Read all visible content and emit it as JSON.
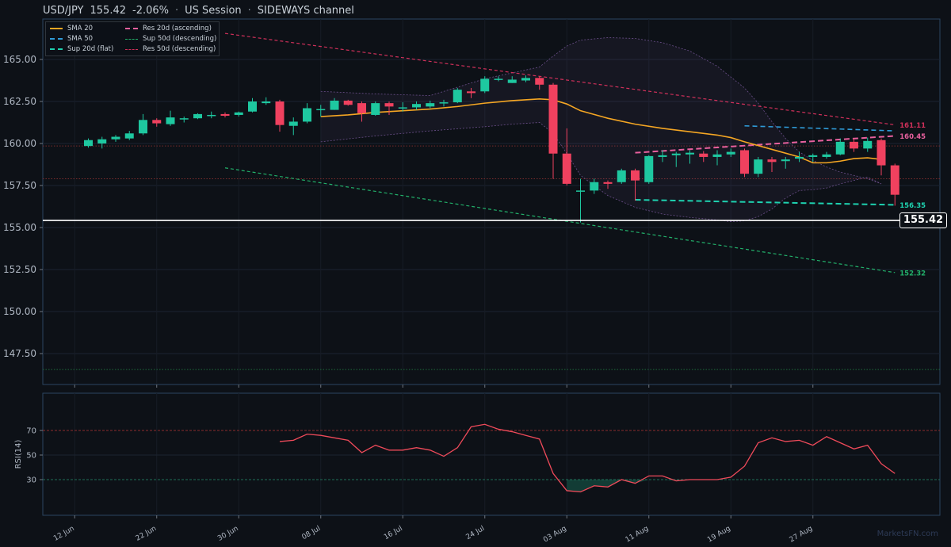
{
  "header": {
    "pair": "USD/JPY",
    "price": "155.42",
    "change": "-2.06%",
    "session": "US Session",
    "channel": "SIDEWAYS channel"
  },
  "colors": {
    "background": "#0d1117",
    "up": "#1ec8a0",
    "down": "#f0415f",
    "sma20": "#f5a623",
    "sma50": "#2f9bd8",
    "sup20": "#1ed2b0",
    "res20": "#e8609e",
    "sup50": "#22b06a",
    "res50": "#d0305a",
    "rsi": "#ef4a5a"
  },
  "legend": {
    "sma20": "SMA 20",
    "sma50": "SMA 50",
    "sup20": "Sup 20d (flat)",
    "res20": "Res 20d (ascending)",
    "sup50": "Sup 50d (descending)",
    "res50": "Res 50d (descending)"
  },
  "watermark": "MarketsFN.com",
  "current_price_label": "155.42",
  "chart_data": {
    "type": "candlestick",
    "ylim": [
      146,
      167
    ],
    "yticks": [
      "165.00",
      "162.50",
      "160.00",
      "157.50",
      "155.00",
      "152.50",
      "150.00",
      "147.50"
    ],
    "xticks": [
      {
        "label": "12 Jun",
        "index": -1
      },
      {
        "label": "22 Jun",
        "index": 5
      },
      {
        "label": "30 Jun",
        "index": 11
      },
      {
        "label": "08 Jul",
        "index": 17
      },
      {
        "label": "16 Jul",
        "index": 23
      },
      {
        "label": "24 Jul",
        "index": 29
      },
      {
        "label": "03 Aug",
        "index": 35
      },
      {
        "label": "11 Aug",
        "index": 41
      },
      {
        "label": "19 Aug",
        "index": 47
      },
      {
        "label": "27 Aug",
        "index": 53
      }
    ],
    "candles": [
      {
        "o": 159.85,
        "h": 160.3,
        "l": 159.75,
        "c": 160.2
      },
      {
        "o": 160.0,
        "h": 160.4,
        "l": 159.7,
        "c": 160.25
      },
      {
        "o": 160.25,
        "h": 160.5,
        "l": 160.1,
        "c": 160.4
      },
      {
        "o": 160.3,
        "h": 160.75,
        "l": 160.2,
        "c": 160.6
      },
      {
        "o": 160.6,
        "h": 161.75,
        "l": 160.5,
        "c": 161.4
      },
      {
        "o": 161.4,
        "h": 161.5,
        "l": 161.0,
        "c": 161.2
      },
      {
        "o": 161.15,
        "h": 161.95,
        "l": 161.05,
        "c": 161.55
      },
      {
        "o": 161.45,
        "h": 161.6,
        "l": 161.25,
        "c": 161.5
      },
      {
        "o": 161.5,
        "h": 161.8,
        "l": 161.45,
        "c": 161.75
      },
      {
        "o": 161.65,
        "h": 161.9,
        "l": 161.5,
        "c": 161.7
      },
      {
        "o": 161.75,
        "h": 161.85,
        "l": 161.55,
        "c": 161.65
      },
      {
        "o": 161.7,
        "h": 161.9,
        "l": 161.6,
        "c": 161.85
      },
      {
        "o": 161.9,
        "h": 162.7,
        "l": 161.85,
        "c": 162.5
      },
      {
        "o": 162.4,
        "h": 162.75,
        "l": 162.3,
        "c": 162.5
      },
      {
        "o": 162.5,
        "h": 162.6,
        "l": 160.7,
        "c": 161.1
      },
      {
        "o": 161.05,
        "h": 161.55,
        "l": 160.5,
        "c": 161.3
      },
      {
        "o": 161.3,
        "h": 162.4,
        "l": 161.2,
        "c": 162.1
      },
      {
        "o": 162.0,
        "h": 162.3,
        "l": 161.6,
        "c": 162.05
      },
      {
        "o": 162.0,
        "h": 162.7,
        "l": 162.0,
        "c": 162.55
      },
      {
        "o": 162.55,
        "h": 162.6,
        "l": 162.25,
        "c": 162.3
      },
      {
        "o": 162.4,
        "h": 162.5,
        "l": 161.3,
        "c": 161.8
      },
      {
        "o": 161.7,
        "h": 162.5,
        "l": 161.65,
        "c": 162.4
      },
      {
        "o": 162.4,
        "h": 162.5,
        "l": 161.7,
        "c": 162.2
      },
      {
        "o": 162.1,
        "h": 162.45,
        "l": 161.9,
        "c": 162.15
      },
      {
        "o": 162.15,
        "h": 162.5,
        "l": 162.0,
        "c": 162.35
      },
      {
        "o": 162.2,
        "h": 162.55,
        "l": 162.1,
        "c": 162.4
      },
      {
        "o": 162.4,
        "h": 162.6,
        "l": 162.2,
        "c": 162.45
      },
      {
        "o": 162.45,
        "h": 163.3,
        "l": 162.4,
        "c": 163.2
      },
      {
        "o": 163.1,
        "h": 163.3,
        "l": 162.7,
        "c": 163.0
      },
      {
        "o": 163.1,
        "h": 164.0,
        "l": 163.0,
        "c": 163.85
      },
      {
        "o": 163.8,
        "h": 164.0,
        "l": 163.7,
        "c": 163.85
      },
      {
        "o": 163.6,
        "h": 164.0,
        "l": 163.6,
        "c": 163.8
      },
      {
        "o": 163.75,
        "h": 164.05,
        "l": 163.65,
        "c": 163.9
      },
      {
        "o": 163.9,
        "h": 164.0,
        "l": 163.2,
        "c": 163.5
      },
      {
        "o": 163.5,
        "h": 163.6,
        "l": 157.9,
        "c": 159.4
      },
      {
        "o": 159.4,
        "h": 160.9,
        "l": 157.5,
        "c": 157.6
      },
      {
        "o": 157.2,
        "h": 157.9,
        "l": 155.3,
        "c": 157.2
      },
      {
        "o": 157.2,
        "h": 157.9,
        "l": 157.0,
        "c": 157.7
      },
      {
        "o": 157.7,
        "h": 157.8,
        "l": 157.3,
        "c": 157.6
      },
      {
        "o": 157.7,
        "h": 158.5,
        "l": 157.6,
        "c": 158.4
      },
      {
        "o": 158.4,
        "h": 158.5,
        "l": 156.6,
        "c": 157.8
      },
      {
        "o": 157.7,
        "h": 159.3,
        "l": 157.6,
        "c": 159.25
      },
      {
        "o": 159.2,
        "h": 159.6,
        "l": 158.9,
        "c": 159.3
      },
      {
        "o": 159.3,
        "h": 159.5,
        "l": 158.6,
        "c": 159.4
      },
      {
        "o": 159.35,
        "h": 159.6,
        "l": 158.8,
        "c": 159.45
      },
      {
        "o": 159.4,
        "h": 159.55,
        "l": 158.9,
        "c": 159.2
      },
      {
        "o": 159.2,
        "h": 159.6,
        "l": 158.7,
        "c": 159.35
      },
      {
        "o": 159.35,
        "h": 159.7,
        "l": 159.2,
        "c": 159.5
      },
      {
        "o": 159.6,
        "h": 159.7,
        "l": 158.0,
        "c": 158.2
      },
      {
        "o": 158.2,
        "h": 159.2,
        "l": 158.0,
        "c": 159.05
      },
      {
        "o": 159.05,
        "h": 159.2,
        "l": 158.3,
        "c": 158.9
      },
      {
        "o": 158.95,
        "h": 159.2,
        "l": 158.5,
        "c": 159.05
      },
      {
        "o": 159.1,
        "h": 159.5,
        "l": 158.9,
        "c": 159.2
      },
      {
        "o": 159.2,
        "h": 159.4,
        "l": 158.9,
        "c": 159.3
      },
      {
        "o": 159.2,
        "h": 159.5,
        "l": 159.1,
        "c": 159.35
      },
      {
        "o": 159.35,
        "h": 160.3,
        "l": 159.3,
        "c": 160.1
      },
      {
        "o": 160.1,
        "h": 160.3,
        "l": 159.5,
        "c": 159.7
      },
      {
        "o": 159.7,
        "h": 160.35,
        "l": 159.5,
        "c": 160.15
      },
      {
        "o": 160.2,
        "h": 160.3,
        "l": 158.1,
        "c": 158.7
      },
      {
        "o": 158.7,
        "h": 158.8,
        "l": 156.3,
        "c": 156.95
      }
    ],
    "sma20": [
      [
        17,
        161.6
      ],
      [
        19,
        161.7
      ],
      [
        21,
        161.85
      ],
      [
        23,
        161.95
      ],
      [
        25,
        162.05
      ],
      [
        27,
        162.2
      ],
      [
        29,
        162.4
      ],
      [
        31,
        162.55
      ],
      [
        33,
        162.65
      ],
      [
        34,
        162.6
      ],
      [
        35,
        162.35
      ],
      [
        36,
        161.95
      ],
      [
        38,
        161.5
      ],
      [
        40,
        161.15
      ],
      [
        42,
        160.9
      ],
      [
        44,
        160.7
      ],
      [
        46,
        160.5
      ],
      [
        47,
        160.35
      ],
      [
        48,
        160.1
      ],
      [
        50,
        159.65
      ],
      [
        52,
        159.2
      ],
      [
        53,
        158.85
      ],
      [
        54,
        158.85
      ],
      [
        55,
        158.95
      ],
      [
        56,
        159.1
      ],
      [
        57,
        159.15
      ],
      [
        58,
        159.05
      ]
    ],
    "envelope_upper": [
      [
        17,
        163.1
      ],
      [
        21,
        162.95
      ],
      [
        25,
        162.85
      ],
      [
        29,
        163.85
      ],
      [
        31,
        164.2
      ],
      [
        33,
        164.55
      ],
      [
        34,
        165.2
      ],
      [
        35,
        165.8
      ],
      [
        36,
        166.15
      ],
      [
        38,
        166.3
      ],
      [
        40,
        166.25
      ],
      [
        42,
        166.0
      ],
      [
        44,
        165.5
      ],
      [
        46,
        164.6
      ],
      [
        48,
        163.3
      ],
      [
        49,
        162.4
      ],
      [
        50,
        161.3
      ],
      [
        51,
        160.3
      ],
      [
        52,
        159.5
      ],
      [
        53,
        159.0
      ],
      [
        54,
        158.6
      ],
      [
        55,
        158.3
      ],
      [
        56,
        158.1
      ],
      [
        57,
        157.9
      ],
      [
        58,
        157.6
      ]
    ],
    "envelope_lower": [
      [
        17,
        160.1
      ],
      [
        21,
        160.45
      ],
      [
        25,
        160.75
      ],
      [
        29,
        161.0
      ],
      [
        31,
        161.15
      ],
      [
        33,
        161.25
      ],
      [
        34,
        160.6
      ],
      [
        35,
        159.4
      ],
      [
        36,
        158.1
      ],
      [
        38,
        156.9
      ],
      [
        40,
        156.2
      ],
      [
        42,
        155.8
      ],
      [
        44,
        155.6
      ],
      [
        46,
        155.45
      ],
      [
        47,
        155.35
      ],
      [
        48,
        155.4
      ],
      [
        49,
        155.65
      ],
      [
        50,
        156.1
      ],
      [
        51,
        156.75
      ],
      [
        52,
        157.2
      ],
      [
        53,
        157.25
      ],
      [
        54,
        157.35
      ],
      [
        55,
        157.6
      ],
      [
        56,
        157.8
      ],
      [
        57,
        158.0
      ],
      [
        58,
        157.6
      ]
    ],
    "sma50_line": {
      "from": [
        48,
        161.05
      ],
      "to": [
        59,
        160.75
      ]
    },
    "res20_line": {
      "from": [
        40,
        159.45
      ],
      "to": [
        59,
        160.45
      ],
      "label": "160.45"
    },
    "sup20_line": {
      "from": [
        40,
        156.65
      ],
      "to": [
        59,
        156.35
      ],
      "label": "156.35"
    },
    "res50_line": {
      "from": [
        10,
        166.55
      ],
      "to": [
        59,
        161.11
      ],
      "label": "161.11"
    },
    "sup50_line": {
      "from": [
        10,
        158.55
      ],
      "to": [
        59,
        152.32
      ],
      "label": "152.32"
    },
    "hlines": [
      159.85,
      157.9,
      146.55
    ],
    "current_price": 155.42,
    "rsi": {
      "ylabel": "RSI(14)",
      "yticks": [
        "70",
        "50",
        "30"
      ],
      "ylim": [
        0,
        100
      ],
      "start_index": 14,
      "values": [
        61,
        62,
        67,
        66,
        64,
        62,
        52,
        58,
        54,
        54,
        56,
        54,
        49,
        56,
        73,
        75,
        71,
        69,
        66,
        63,
        35,
        21,
        20,
        25,
        24,
        30,
        27,
        33,
        33,
        29,
        30,
        30,
        30,
        32,
        41,
        60,
        64,
        61,
        62,
        58,
        65,
        60,
        55,
        58,
        43,
        35
      ]
    }
  }
}
